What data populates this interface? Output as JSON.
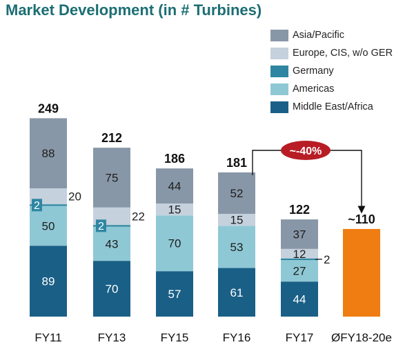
{
  "chart_data": {
    "type": "bar",
    "stacked": true,
    "title": "Market Development (in # Turbines)",
    "categories": [
      "FY11",
      "FY13",
      "FY15",
      "FY16",
      "FY17",
      "ØFY18-20e"
    ],
    "series": [
      {
        "name": "Middle East/Africa",
        "color": "#1a5f86",
        "values": [
          89,
          70,
          57,
          61,
          44,
          null
        ]
      },
      {
        "name": "Americas",
        "color": "#8fc8d5",
        "values": [
          50,
          43,
          70,
          53,
          27,
          null
        ]
      },
      {
        "name": "Germany",
        "color": "#2e86a2",
        "values": [
          2,
          2,
          null,
          null,
          2,
          null
        ]
      },
      {
        "name": "Europe, CIS, w/o GER",
        "color": "#c5d1dd",
        "values": [
          20,
          22,
          15,
          15,
          12,
          null
        ]
      },
      {
        "name": "Asia/Pacific",
        "color": "#8897a7",
        "values": [
          88,
          75,
          44,
          52,
          37,
          null
        ]
      }
    ],
    "totals": [
      "249",
      "212",
      "186",
      "181",
      "122",
      "~110"
    ],
    "forecast": {
      "category": "ØFY18-20e",
      "value": 110,
      "label": "~110",
      "color": "#ef7d11"
    },
    "annotation": {
      "text": "~-40%",
      "from": "FY16",
      "to": "ØFY18-20e",
      "color": "#b81d25"
    },
    "legend_order": [
      "Asia/Pacific",
      "Europe, CIS, w/o GER",
      "Germany",
      "Americas",
      "Middle East/Africa"
    ],
    "legend_position": "top-right",
    "xlabel": "",
    "ylabel": "",
    "ylim": [
      0,
      249
    ]
  }
}
